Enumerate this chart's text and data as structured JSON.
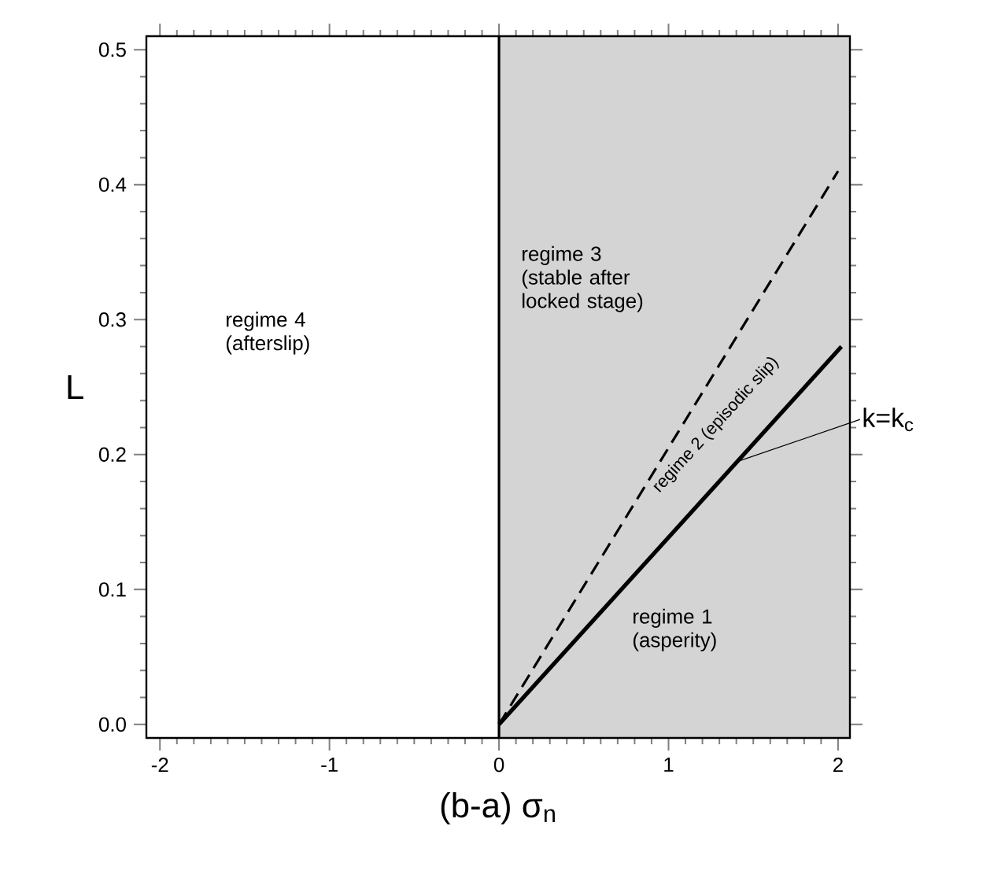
{
  "chart_data": {
    "type": "line",
    "xlabel": "(b-a) σ$_{n}$",
    "ylabel": "L",
    "xlim": [
      -2.08,
      2.07
    ],
    "ylim": [
      -0.01,
      0.51
    ],
    "xticks": [
      -2,
      -1,
      0,
      1,
      2
    ],
    "yticks": [
      {
        "value": 0,
        "label": "0.0"
      },
      0.1,
      0.2,
      0.3,
      0.4,
      0.5
    ],
    "series": [
      {
        "x": [
          0,
          2.0
        ],
        "values": [
          0,
          0.41
        ],
        "color": "#000000",
        "line_style": "dashed"
      },
      {
        "x": [
          0,
          2.02
        ],
        "values": [
          0,
          0.28
        ],
        "color": "#000000",
        "line_style": "solid"
      }
    ],
    "bands": [
      {
        "axis": "x",
        "from": 0,
        "to": 2.07,
        "color": "#d4d4d4"
      }
    ],
    "annotations": [
      "regime 4 (afterslip)",
      "regime 3 (stable after locked stage)",
      "regime 2 (episodic slip)",
      "regime 1 (asperity)",
      {
        "text": "k=k$_{c}$",
        "x": 1.41,
        "y": 0.195
      }
    ],
    "ref_lines": [
      {
        "axis": "x",
        "value": 0,
        "color": "#000000",
        "line_style": "solid"
      }
    ],
    "grid": false
  }
}
